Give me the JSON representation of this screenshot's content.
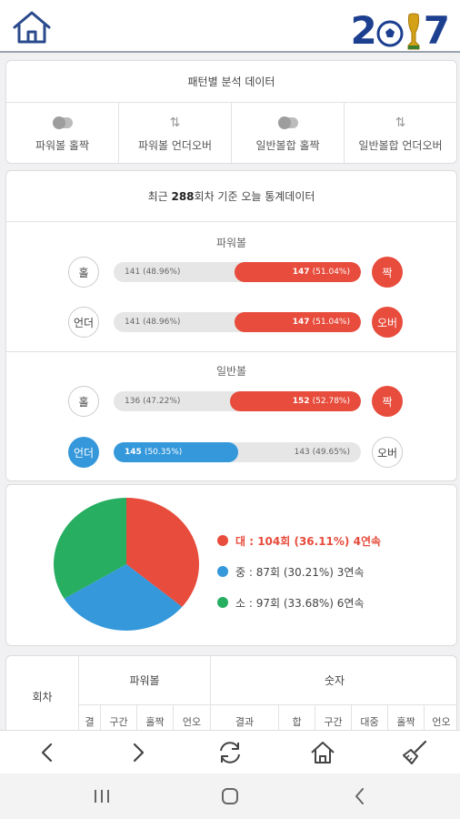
{
  "header": {
    "home_icon": "home-icon",
    "logo_text_1": "2",
    "logo_text_2": "7"
  },
  "patterns": {
    "title": "패턴별 분석 데이터",
    "items": [
      {
        "label": "파워볼 홀짝",
        "icon": "toggle-icon"
      },
      {
        "label": "파워볼 언더오버",
        "icon": "updown-arrows-icon"
      },
      {
        "label": "일반볼합 홀짝",
        "icon": "toggle-icon"
      },
      {
        "label": "일반볼합 언더오버",
        "icon": "updown-arrows-icon"
      }
    ]
  },
  "stats": {
    "title_prefix": "최근 ",
    "title_count": "288",
    "title_suffix": "회차 기준 오늘 통계데이터",
    "powerball": {
      "label": "파워볼",
      "odd_even": {
        "left_label": "홀",
        "right_label": "짝",
        "left_count": "141",
        "left_pct": "(48.96%)",
        "right_count": "147",
        "right_pct": "(51.04%)",
        "right_fraction": 0.5104
      },
      "under_over": {
        "left_label": "언더",
        "right_label": "오버",
        "left_count": "141",
        "left_pct": "(48.96%)",
        "right_count": "147",
        "right_pct": "(51.04%)",
        "right_fraction": 0.5104
      }
    },
    "normal": {
      "label": "일반볼",
      "odd_even": {
        "left_label": "홀",
        "right_label": "짝",
        "left_count": "136",
        "left_pct": "(47.22%)",
        "right_count": "152",
        "right_pct": "(52.78%)",
        "right_fraction": 0.5278
      },
      "under_over": {
        "left_label": "언더",
        "right_label": "오버",
        "left_count": "145",
        "left_pct": "(50.35%)",
        "right_count": "143",
        "right_pct": "(49.65%)",
        "left_fraction": 0.5035
      }
    }
  },
  "size_dist": {
    "colors": {
      "large": "#e74c3c",
      "medium": "#3498db",
      "small": "#27ae60"
    },
    "legend": [
      {
        "key": "large",
        "text": "대 : 104회 (36.11%) 4연속"
      },
      {
        "key": "medium",
        "text": "중 : 87회 (30.21%) 3연속"
      },
      {
        "key": "small",
        "text": "소 : 97회 (33.68%) 6연속"
      }
    ]
  },
  "chart_data": {
    "type": "pie",
    "labels": [
      "대",
      "중",
      "소"
    ],
    "values": [
      36.11,
      30.21,
      33.68
    ],
    "counts": [
      104,
      87,
      97
    ],
    "colors": [
      "#e74c3c",
      "#3498db",
      "#27ae60"
    ]
  },
  "table": {
    "col_round": "회차",
    "group_powerball": "파워볼",
    "group_number": "숫자",
    "pb_sub": [
      "결",
      "구간",
      "홀짝",
      "언오"
    ],
    "num_sub": [
      "결과",
      "합",
      "구간",
      "대중",
      "홀짝",
      "언오"
    ]
  },
  "bottom_nav": {
    "items": [
      "back-icon",
      "forward-icon",
      "refresh-icon",
      "home-icon",
      "broom-icon"
    ]
  },
  "system_nav": {
    "items": [
      "recent-apps-icon",
      "home-circle-icon",
      "system-back-icon"
    ]
  }
}
